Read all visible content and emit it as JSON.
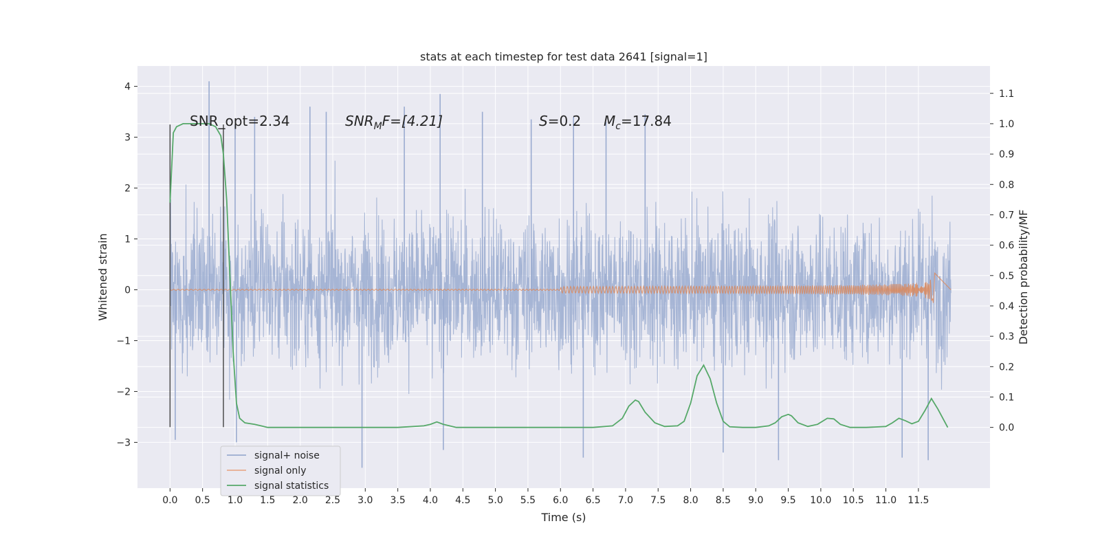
{
  "chart_data": {
    "type": "line",
    "title": "stats at each timestep for test data 2641 [signal=1]",
    "xlabel": "Time (s)",
    "ylabel": "Whitened strain",
    "ylabel_right": "Detection probability/MF",
    "xlim": [
      -0.5,
      12.6
    ],
    "ylim": [
      -3.9,
      4.4
    ],
    "ylim_right": [
      -0.2,
      1.19
    ],
    "x_ticks": [
      "0.0",
      "0.5",
      "1.0",
      "1.5",
      "2.0",
      "2.5",
      "3.0",
      "3.5",
      "4.0",
      "4.5",
      "5.0",
      "5.5",
      "6.0",
      "6.5",
      "7.0",
      "7.5",
      "8.0",
      "8.5",
      "9.0",
      "9.5",
      "10.0",
      "10.5",
      "11.0",
      "11.5"
    ],
    "y_ticks_left": [
      "4",
      "3",
      "2",
      "1",
      "0",
      "−1",
      "−2",
      "−3"
    ],
    "y_ticks_left_values": [
      4,
      3,
      2,
      1,
      0,
      -1,
      -2,
      -3
    ],
    "y_ticks_right": [
      "1.1",
      "1.0",
      "0.9",
      "0.8",
      "0.7",
      "0.6",
      "0.5",
      "0.4",
      "0.3",
      "0.2",
      "0.1",
      "0.0"
    ],
    "y_ticks_right_values": [
      1.1,
      1.0,
      0.9,
      0.8,
      0.7,
      0.6,
      0.5,
      0.4,
      0.3,
      0.2,
      0.1,
      0.0
    ],
    "grid": true,
    "legend_position": "lower-left",
    "annotations": {
      "snr_opt": "SNR_opt=2.34",
      "snr_mf_main": "SNR",
      "snr_mf_sub": "M",
      "snr_mf_rest": "F=[4.21]",
      "s_main": "S",
      "s_rest": "=0.2",
      "mc_main": "M",
      "mc_sub": "c",
      "mc_rest": "=17.84"
    },
    "vertical_lines": [
      0.0,
      0.82
    ],
    "vertical_line_range": [
      -2.7,
      3.25
    ],
    "series": [
      {
        "name": "signal+ noise",
        "color": "#9aabd0",
        "x_range": [
          0.0,
          12.0
        ],
        "envelope": {
          "typical": 1.5,
          "peak_max": 4.1,
          "peak_min": -3.5
        },
        "peaks": [
          [
            0.6,
            4.1
          ],
          [
            1.0,
            3.25
          ],
          [
            1.3,
            3.4
          ],
          [
            2.15,
            3.6
          ],
          [
            2.4,
            3.5
          ],
          [
            3.6,
            3.6
          ],
          [
            4.15,
            3.85
          ],
          [
            4.8,
            3.5
          ],
          [
            5.55,
            3.35
          ],
          [
            6.2,
            3.4
          ],
          [
            6.7,
            3.3
          ],
          [
            7.3,
            3.45
          ],
          [
            6.35,
            -3.3
          ],
          [
            2.95,
            -3.5
          ],
          [
            4.2,
            -3.15
          ],
          [
            8.5,
            -3.2
          ],
          [
            9.35,
            -3.35
          ],
          [
            11.25,
            -3.3
          ],
          [
            11.65,
            -3.35
          ],
          [
            0.08,
            -2.95
          ],
          [
            1.02,
            -3.0
          ]
        ]
      },
      {
        "name": "signal only",
        "color": "#dd8452",
        "x_range": [
          0.0,
          11.75
        ],
        "chirp_end_amplitude": 0.4,
        "chirp_end_time": 11.75
      },
      {
        "name": "signal statistics",
        "color": "#55a868",
        "axis": "right",
        "x": [
          0.0,
          0.05,
          0.1,
          0.2,
          0.3,
          0.4,
          0.5,
          0.6,
          0.7,
          0.78,
          0.82,
          0.87,
          0.92,
          0.97,
          1.02,
          1.07,
          1.15,
          1.3,
          1.5,
          2.0,
          2.5,
          3.0,
          3.5,
          3.9,
          4.0,
          4.1,
          4.2,
          4.4,
          5.0,
          5.5,
          6.0,
          6.5,
          6.8,
          6.95,
          7.05,
          7.15,
          7.2,
          7.3,
          7.45,
          7.6,
          7.8,
          7.9,
          8.0,
          8.1,
          8.2,
          8.3,
          8.4,
          8.5,
          8.6,
          8.8,
          9.0,
          9.2,
          9.3,
          9.4,
          9.5,
          9.55,
          9.65,
          9.8,
          9.95,
          10.1,
          10.2,
          10.3,
          10.45,
          10.7,
          11.0,
          11.1,
          11.2,
          11.3,
          11.4,
          11.5,
          11.6,
          11.7,
          11.8,
          11.95
        ],
        "values": [
          0.74,
          0.97,
          0.99,
          1.0,
          1.0,
          1.0,
          1.0,
          1.0,
          0.99,
          0.96,
          0.9,
          0.75,
          0.5,
          0.25,
          0.08,
          0.03,
          0.015,
          0.01,
          0.0,
          0.0,
          0.0,
          0.0,
          0.0,
          0.005,
          0.01,
          0.018,
          0.01,
          0.0,
          0.0,
          0.0,
          0.0,
          0.0,
          0.005,
          0.03,
          0.07,
          0.09,
          0.085,
          0.05,
          0.015,
          0.003,
          0.005,
          0.02,
          0.08,
          0.17,
          0.205,
          0.16,
          0.08,
          0.02,
          0.002,
          0.0,
          0.0,
          0.005,
          0.015,
          0.035,
          0.043,
          0.038,
          0.015,
          0.003,
          0.01,
          0.03,
          0.028,
          0.01,
          0.0,
          0.0,
          0.003,
          0.015,
          0.03,
          0.022,
          0.012,
          0.02,
          0.055,
          0.095,
          0.06,
          0.0
        ]
      }
    ]
  }
}
